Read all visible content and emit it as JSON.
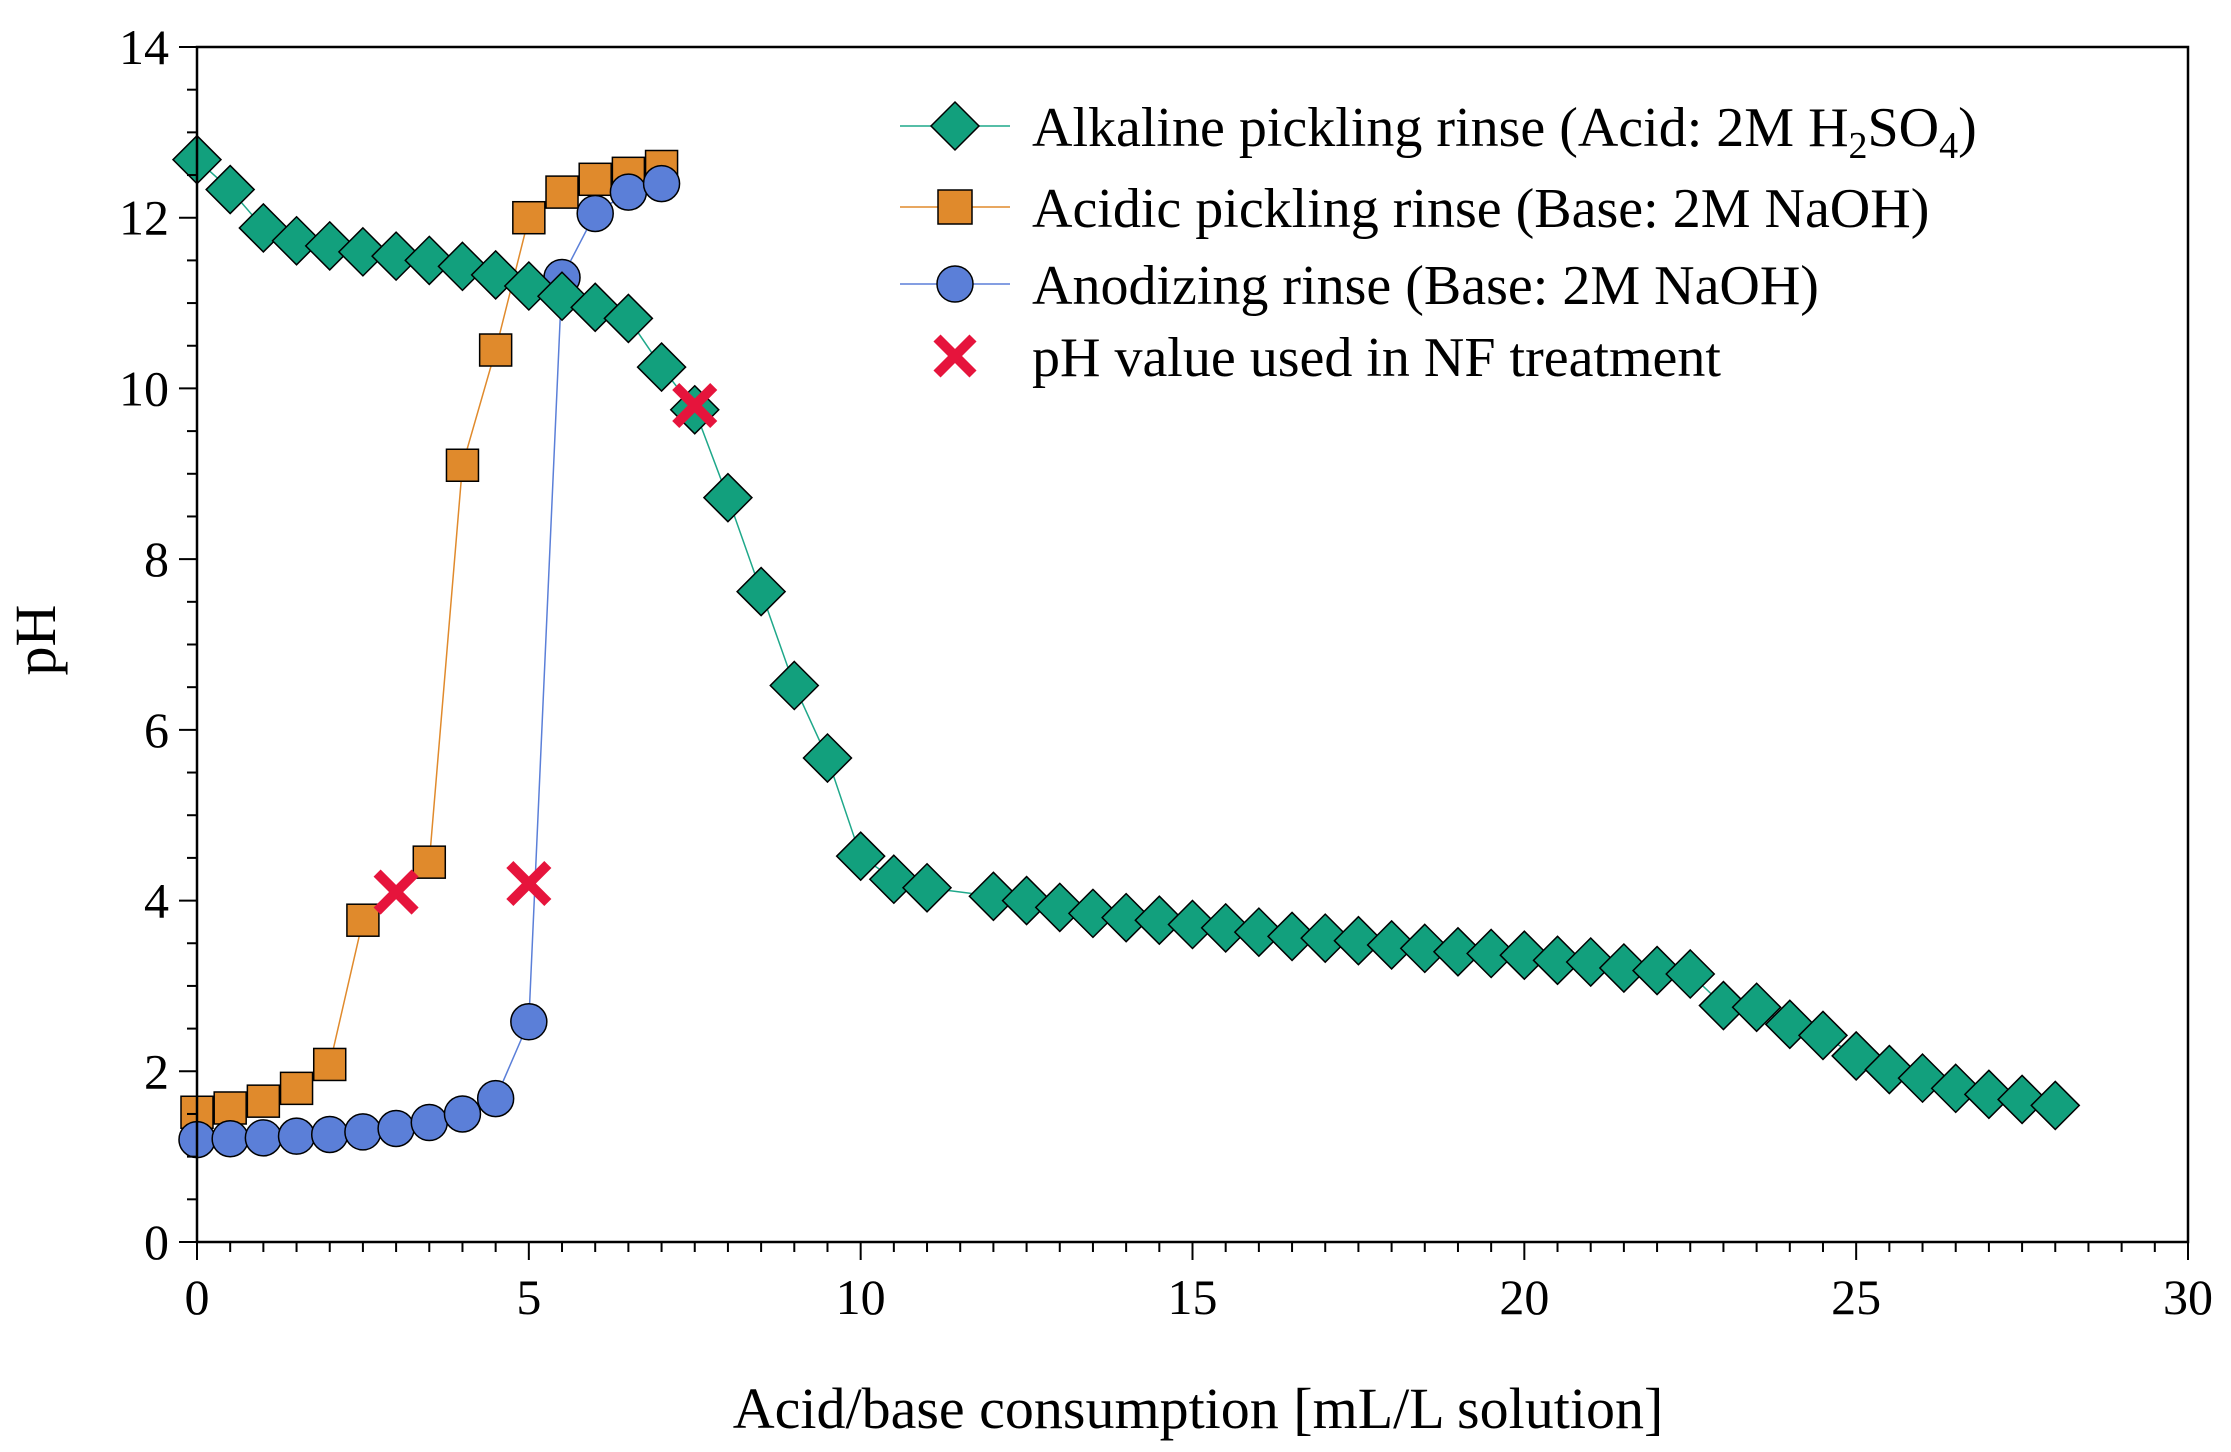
{
  "chart_data": {
    "type": "scatter",
    "xlabel": "Acid/base consumption [mL/L solution]",
    "ylabel": "pH",
    "xlim": [
      0,
      30
    ],
    "ylim": [
      0,
      14
    ],
    "xticks": [
      0,
      5,
      10,
      15,
      20,
      25,
      30
    ],
    "yticks": [
      0,
      2,
      4,
      6,
      8,
      10,
      12,
      14
    ],
    "grid": false,
    "legend_position": "top-right",
    "series": [
      {
        "name": "Alkaline pickling rinse (Acid: 2M H₂SO₄)",
        "label_main": "Alkaline pickling rinse (Acid: 2M H",
        "sub1": "2",
        "mid": "SO",
        "sub2": "4",
        "tail": ")",
        "marker": "diamond",
        "color": "#12a07d",
        "line_color": "#1fa88a",
        "x": [
          0,
          0.5,
          1,
          1.5,
          2,
          2.5,
          3,
          3.5,
          4,
          4.5,
          5,
          5.5,
          6,
          6.5,
          7,
          7.5,
          8,
          8.5,
          9,
          9.5,
          10,
          10.5,
          11,
          12,
          12.5,
          13,
          13.5,
          14,
          14.5,
          15,
          15.5,
          16,
          16.5,
          17,
          17.5,
          18,
          18.5,
          19,
          19.5,
          20,
          20.5,
          21,
          21.5,
          22,
          22.5,
          23,
          23.5,
          24,
          24.5,
          25,
          25.5,
          26,
          26.5,
          27,
          27.5,
          28
        ],
        "y": [
          12.68,
          12.33,
          11.88,
          11.73,
          11.67,
          11.6,
          11.55,
          11.5,
          11.43,
          11.33,
          11.2,
          11.08,
          10.95,
          10.82,
          10.25,
          9.75,
          8.72,
          7.62,
          6.52,
          5.67,
          4.52,
          4.25,
          4.15,
          4.05,
          4.0,
          3.92,
          3.85,
          3.8,
          3.77,
          3.72,
          3.68,
          3.63,
          3.58,
          3.56,
          3.53,
          3.48,
          3.44,
          3.4,
          3.38,
          3.36,
          3.3,
          3.28,
          3.21,
          3.18,
          3.14,
          2.77,
          2.75,
          2.55,
          2.42,
          2.18,
          2.02,
          1.92,
          1.8,
          1.73,
          1.67,
          1.6
        ]
      },
      {
        "name": "Acidic pickling rinse (Base: 2M NaOH)",
        "marker": "square",
        "color": "#e08a2c",
        "line_color": "#e08a2c",
        "x": [
          0,
          0.5,
          1,
          1.5,
          2,
          2.5,
          3.5,
          4,
          4.5,
          5,
          5.5,
          6,
          6.5,
          7
        ],
        "y": [
          1.52,
          1.57,
          1.65,
          1.8,
          2.08,
          3.77,
          4.45,
          9.1,
          10.45,
          12.0,
          12.3,
          12.45,
          12.52,
          12.6
        ]
      },
      {
        "name": "Anodizing rinse (Base: 2M NaOH)",
        "marker": "circle",
        "color": "#5b7fd8",
        "line_color": "#5b7fd8",
        "x": [
          0,
          0.5,
          1,
          1.5,
          2,
          2.5,
          3,
          3.5,
          4,
          4.5,
          5,
          5.5,
          6,
          6.5,
          7
        ],
        "y": [
          1.2,
          1.21,
          1.22,
          1.24,
          1.26,
          1.29,
          1.33,
          1.4,
          1.5,
          1.68,
          2.58,
          11.3,
          12.05,
          12.3,
          12.4
        ]
      },
      {
        "name": "pH value used in NF treatment",
        "marker": "x",
        "color": "#e6143c",
        "x": [
          3,
          5,
          7.5
        ],
        "y": [
          4.1,
          4.2,
          9.8
        ]
      }
    ]
  }
}
